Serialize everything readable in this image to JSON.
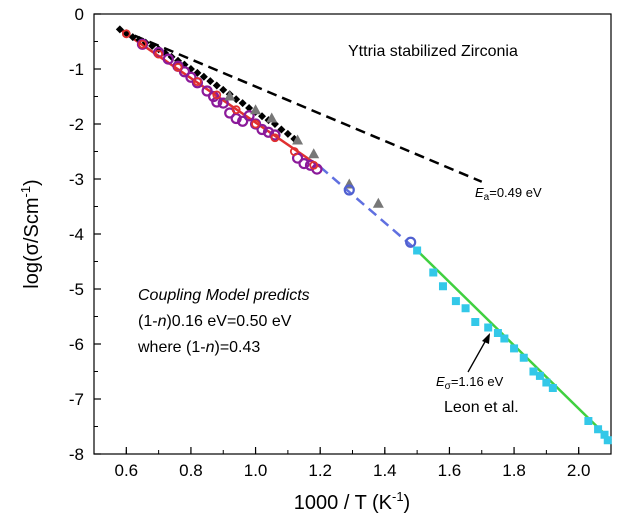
{
  "chart_data": {
    "type": "scatter",
    "title": "",
    "xlabel": "1000 / T (K",
    "xlabel_sup": "-1",
    "xlabel_close": ")",
    "ylabel": "log(σ/Scm",
    "ylabel_sup": "-1",
    "ylabel_close": ")",
    "xlim": [
      0.5,
      2.1
    ],
    "ylim": [
      -8,
      0
    ],
    "xticks": [
      0.6,
      0.8,
      1.0,
      1.2,
      1.4,
      1.6,
      1.8,
      2.0
    ],
    "xtick_labels": [
      "0.6",
      "0.8",
      "1.0",
      "1.2",
      "1.4",
      "1.6",
      "1.8",
      "2.0"
    ],
    "yticks": [
      0,
      -1,
      -2,
      -3,
      -4,
      -5,
      -6,
      -7,
      -8
    ],
    "ytick_labels": [
      "0",
      "-1",
      "-2",
      "-3",
      "-4",
      "-5",
      "-6",
      "-7",
      "-8"
    ],
    "grid": false,
    "annotations": {
      "material": "Yttria stabilized Zirconia",
      "ea_symbol": "E",
      "ea_sub": "a",
      "ea_value": "=0.49 eV",
      "es_symbol": "E",
      "es_sub": "σ",
      "es_value": "=1.16 eV",
      "leon": "Leon et al.",
      "cm_line1": "Coupling Model predicts",
      "cm_line2_pre": "(1-",
      "cm_line2_n": "n",
      "cm_line2_post": ")0.16 eV=0.50 eV",
      "cm_line3_pre": "where (1-",
      "cm_line3_n": "n",
      "cm_line3_post": ")=0.43"
    },
    "lines": [
      {
        "style": "dashed",
        "color": "#000000",
        "x": [
          0.58,
          1.7
        ],
        "y": [
          -0.28,
          -3.05
        ]
      },
      {
        "style": "solid",
        "color": "#e03030",
        "x": [
          0.58,
          1.2
        ],
        "y": [
          -0.28,
          -2.78
        ]
      },
      {
        "style": "dashed",
        "color": "#6070e0",
        "x": [
          1.2,
          1.5
        ],
        "y": [
          -2.78,
          -4.3
        ]
      },
      {
        "style": "solid",
        "color": "#40d040",
        "x": [
          1.5,
          2.1
        ],
        "y": [
          -4.3,
          -7.75
        ]
      }
    ],
    "series": [
      {
        "marker": "diamond",
        "color": "#000000",
        "x": [
          0.58,
          0.6,
          0.62,
          0.64,
          0.66,
          0.68,
          0.7,
          0.72,
          0.74,
          0.76,
          0.78,
          0.8,
          0.82,
          0.84,
          0.86,
          0.88,
          0.9,
          0.92,
          0.94,
          0.96,
          0.98,
          1.0,
          1.02,
          1.04,
          1.06,
          1.08,
          1.1,
          1.12
        ],
        "y": [
          -0.28,
          -0.35,
          -0.42,
          -0.47,
          -0.52,
          -0.58,
          -0.64,
          -0.71,
          -0.78,
          -0.85,
          -0.92,
          -1.0,
          -1.07,
          -1.14,
          -1.22,
          -1.3,
          -1.38,
          -1.46,
          -1.55,
          -1.62,
          -1.71,
          -1.78,
          -1.86,
          -1.93,
          -2.0,
          -2.1,
          -2.18,
          -2.27
        ]
      },
      {
        "marker": "open-circle",
        "color": "#8b1a9a",
        "x": [
          0.65,
          0.7,
          0.73,
          0.76,
          0.78,
          0.8,
          0.82,
          0.85,
          0.87,
          0.88,
          0.9,
          0.92,
          0.94,
          0.96,
          0.98,
          1.0,
          1.02,
          1.04,
          1.06,
          1.13,
          1.15,
          1.17,
          1.19
        ],
        "y": [
          -0.55,
          -0.7,
          -0.82,
          -0.95,
          -1.05,
          -1.15,
          -1.25,
          -1.4,
          -1.5,
          -1.6,
          -1.62,
          -1.8,
          -1.9,
          -1.95,
          -1.85,
          -2.0,
          -2.1,
          -2.15,
          -2.2,
          -2.62,
          -2.72,
          -2.75,
          -2.82
        ]
      },
      {
        "marker": "triangle",
        "color": "#777777",
        "x": [
          0.92,
          1.0,
          1.05,
          1.13,
          1.18,
          1.29,
          1.38
        ],
        "y": [
          -1.5,
          -1.75,
          -1.9,
          -2.3,
          -2.55,
          -3.1,
          -3.45
        ]
      },
      {
        "marker": "red-circle",
        "color": "#e03030",
        "x": [
          0.6,
          0.65,
          0.7,
          0.76,
          0.82,
          0.88,
          0.94,
          1.0,
          1.06,
          1.12,
          1.18
        ],
        "y": [
          -0.36,
          -0.55,
          -0.73,
          -0.97,
          -1.23,
          -1.47,
          -1.74,
          -2.0,
          -2.25,
          -2.5,
          -2.75
        ]
      },
      {
        "marker": "open-circle",
        "color": "#5060d0",
        "x": [
          1.29,
          1.48
        ],
        "y": [
          -3.2,
          -4.15
        ]
      },
      {
        "marker": "square",
        "color": "#33c8e8",
        "x": [
          1.5,
          1.55,
          1.58,
          1.62,
          1.65,
          1.68,
          1.72,
          1.75,
          1.77,
          1.8,
          1.83,
          1.86,
          1.88,
          1.9,
          1.92,
          2.03,
          2.06,
          2.08,
          2.09
        ],
        "y": [
          -4.3,
          -4.7,
          -4.95,
          -5.22,
          -5.35,
          -5.6,
          -5.7,
          -5.8,
          -5.9,
          -6.08,
          -6.25,
          -6.5,
          -6.58,
          -6.7,
          -6.8,
          -7.4,
          -7.55,
          -7.65,
          -7.75
        ]
      }
    ]
  }
}
